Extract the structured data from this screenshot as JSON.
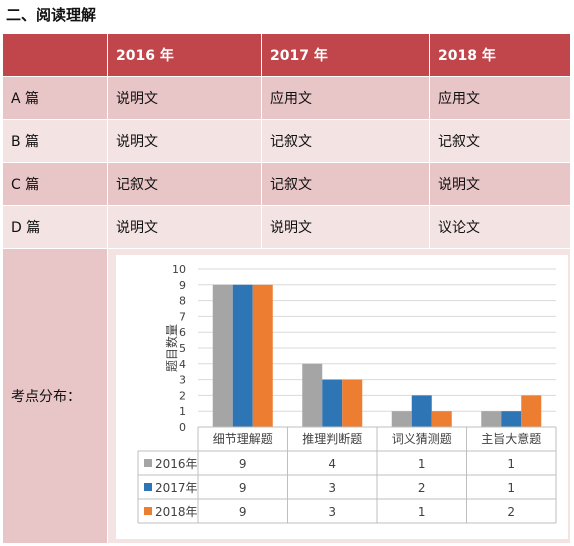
{
  "heading": "二、阅读理解",
  "header": [
    "",
    "2016 年",
    "2017 年",
    "2018 年"
  ],
  "rows": [
    [
      "A 篇",
      "说明文",
      "应用文",
      "应用文"
    ],
    [
      "B 篇",
      "说明文",
      "记叙文",
      "记叙文"
    ],
    [
      "C 篇",
      "记叙文",
      "记叙文",
      "说明文"
    ],
    [
      "D 篇",
      "说明文",
      "说明文",
      "议论文"
    ]
  ],
  "chart_label": "考点分布：",
  "chart_data": {
    "type": "bar",
    "categories": [
      "细节理解题",
      "推理判断题",
      "词义猜测题",
      "主旨大意题"
    ],
    "series": [
      {
        "name": "2016年",
        "values": [
          9,
          4,
          1,
          1
        ],
        "color": "#a5a5a5"
      },
      {
        "name": "2017年",
        "values": [
          9,
          3,
          2,
          1
        ],
        "color": "#2e75b6"
      },
      {
        "name": "2018年",
        "values": [
          9,
          3,
          1,
          2
        ],
        "color": "#ed7d31"
      }
    ],
    "ylabel": "题目数量",
    "ylim": [
      0,
      10
    ],
    "yticks": [
      "0",
      "1",
      "2",
      "3",
      "4",
      "5",
      "6",
      "7",
      "8",
      "9",
      "10"
    ],
    "grid": true,
    "legend": "data-table"
  }
}
